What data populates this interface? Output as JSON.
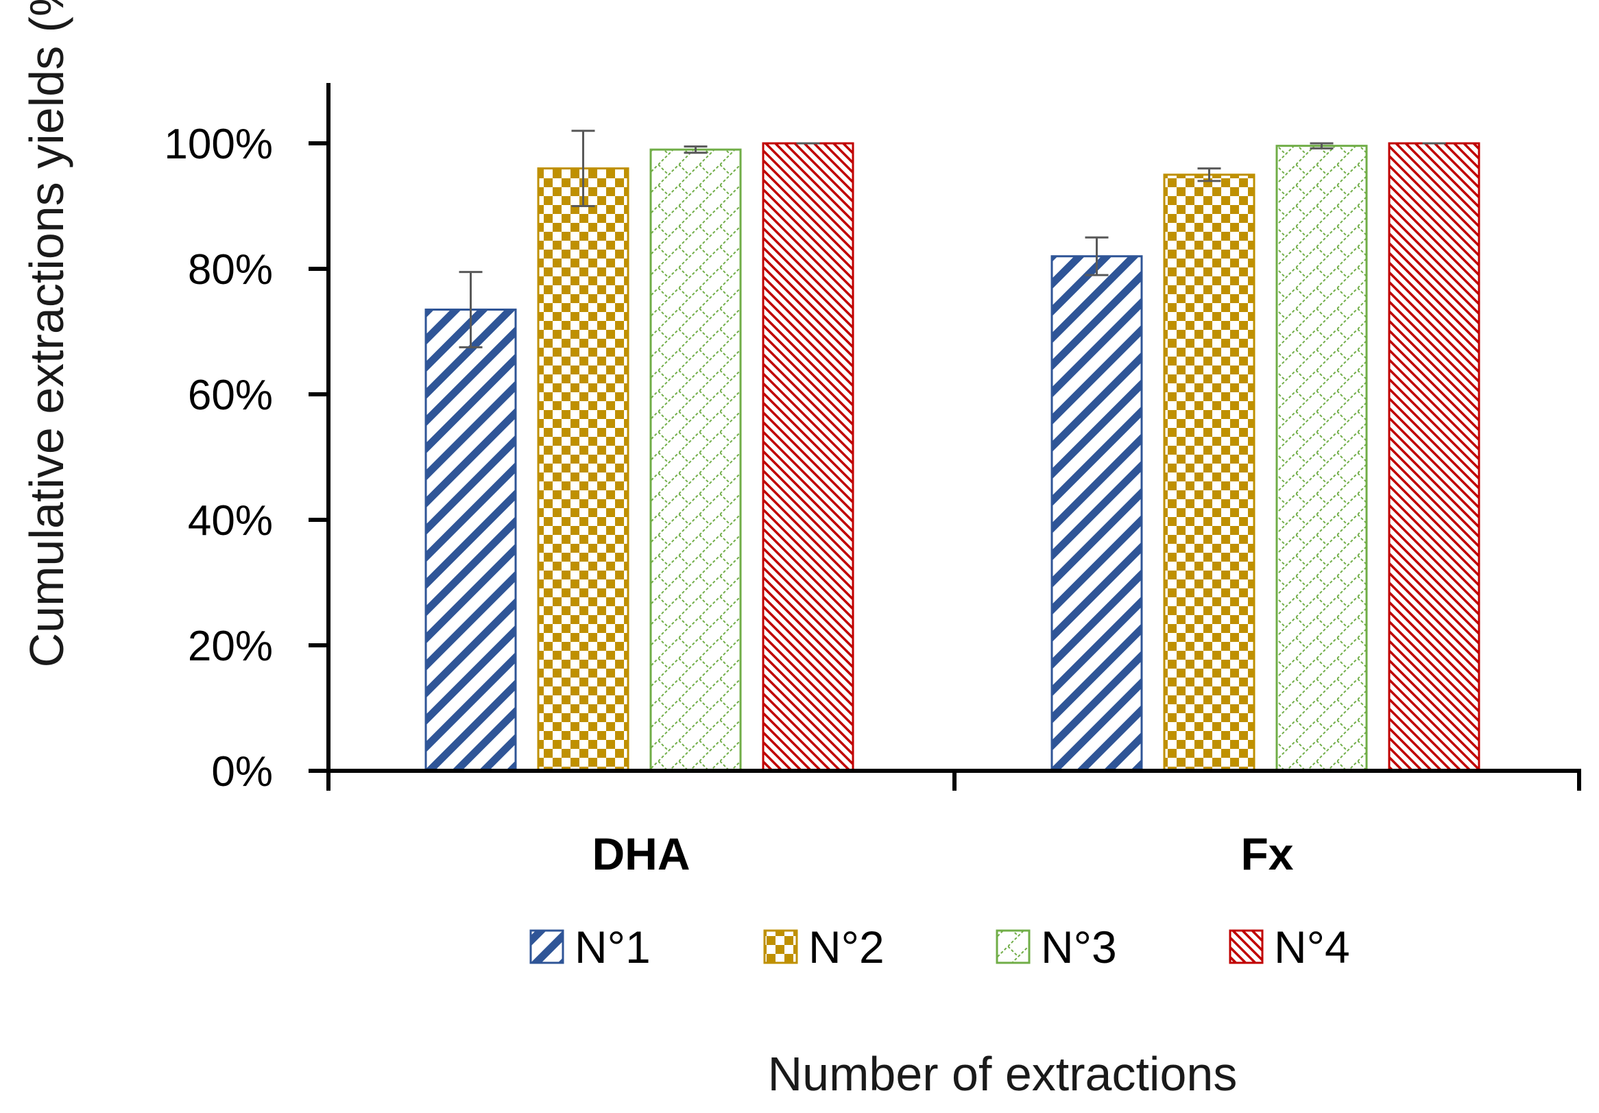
{
  "chart_data": {
    "type": "bar",
    "title": "",
    "xlabel": "Number of extractions",
    "ylabel": "Cumulative extractions yields (%)",
    "ylim": [
      0,
      100
    ],
    "yticks": [
      "0%",
      "20%",
      "40%",
      "60%",
      "80%",
      "100%"
    ],
    "ytick_values": [
      0,
      20,
      40,
      60,
      80,
      100
    ],
    "categories": [
      "DHA",
      "Fx"
    ],
    "series": [
      {
        "name": "N°1",
        "color": "#2F5597",
        "pattern": "wide-diagonal",
        "values": [
          73.5,
          82
        ],
        "errors": [
          6,
          3
        ]
      },
      {
        "name": "N°2",
        "color": "#BF9000",
        "pattern": "checker",
        "values": [
          96,
          95
        ],
        "errors": [
          6,
          1
        ]
      },
      {
        "name": "N°3",
        "color": "#70AD47",
        "pattern": "dotted-lattice",
        "values": [
          99,
          99.6
        ],
        "errors": [
          0.5,
          0.4
        ]
      },
      {
        "name": "N°4",
        "color": "#C00000",
        "pattern": "narrow-diagonal",
        "values": [
          100,
          100
        ],
        "errors": [
          0,
          0
        ]
      }
    ],
    "legend_position": "bottom",
    "grid": false
  }
}
